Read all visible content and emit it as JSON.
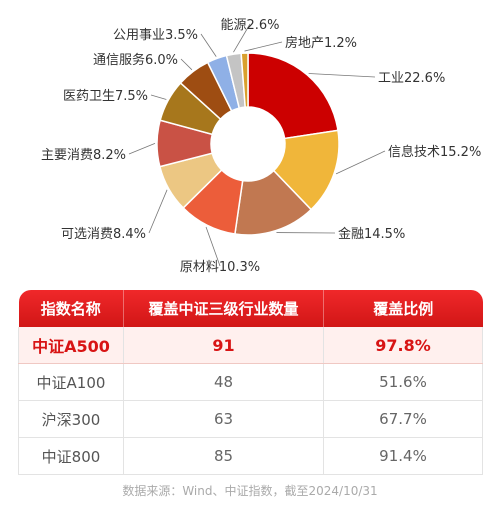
{
  "chart_data": {
    "type": "pie",
    "donut": true,
    "slices": [
      {
        "label": "工业",
        "value": 22.6,
        "display": "工业22.6%",
        "color": "#cc0000"
      },
      {
        "label": "信息技术",
        "value": 15.2,
        "display": "信息技术15.2%",
        "color": "#f0b63a"
      },
      {
        "label": "金融",
        "value": 14.5,
        "display": "金融14.5%",
        "color": "#c17851"
      },
      {
        "label": "原材料",
        "value": 10.3,
        "display": "原材料10.3%",
        "color": "#ec5d3a"
      },
      {
        "label": "可选消费",
        "value": 8.4,
        "display": "可选消费8.4%",
        "color": "#ecc783"
      },
      {
        "label": "主要消费",
        "value": 8.2,
        "display": "主要消费8.2%",
        "color": "#c95245"
      },
      {
        "label": "医药卫生",
        "value": 7.5,
        "display": "医药卫生7.5%",
        "color": "#a7771c"
      },
      {
        "label": "通信服务",
        "value": 6.0,
        "display": "通信服务6.0%",
        "color": "#9e4d12"
      },
      {
        "label": "公用事业",
        "value": 3.5,
        "display": "公用事业3.5%",
        "color": "#8fb0e6"
      },
      {
        "label": "能源",
        "value": 2.6,
        "display": "能源2.6%",
        "color": "#c4c4c4"
      },
      {
        "label": "房地产",
        "value": 1.2,
        "display": "房地产1.2%",
        "color": "#d9a02e"
      }
    ]
  },
  "table": {
    "headers": [
      "指数名称",
      "覆盖中证三级行业数量",
      "覆盖比例"
    ],
    "rows": [
      {
        "name": "中证A500",
        "count": "91",
        "ratio": "97.8%",
        "highlight": true
      },
      {
        "name": "中证A100",
        "count": "48",
        "ratio": "51.6%",
        "highlight": false
      },
      {
        "name": "沪深300",
        "count": "63",
        "ratio": "67.7%",
        "highlight": false
      },
      {
        "name": "中证800",
        "count": "85",
        "ratio": "91.4%",
        "highlight": false
      }
    ]
  },
  "source_note": "数据来源：Wind、中证指数，截至2024/10/31"
}
